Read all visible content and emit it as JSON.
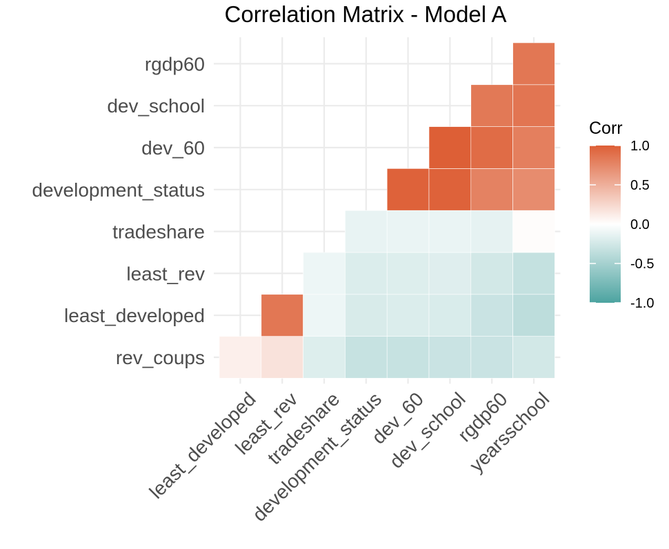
{
  "chart_data": {
    "type": "heatmap",
    "title": "Correlation Matrix - Model A",
    "x_categories": [
      "least_developed",
      "least_rev",
      "tradeshare",
      "development_status",
      "dev_60",
      "dev_school",
      "rgdp60",
      "yearsschool"
    ],
    "y_categories": [
      "rev_coups",
      "least_developed",
      "least_rev",
      "tradeshare",
      "development_status",
      "dev_60",
      "dev_school",
      "rgdp60"
    ],
    "cells": [
      {
        "x": "least_developed",
        "y": "rev_coups",
        "value": 0.1
      },
      {
        "x": "least_rev",
        "y": "rev_coups",
        "value": 0.18
      },
      {
        "x": "tradeshare",
        "y": "rev_coups",
        "value": -0.19
      },
      {
        "x": "development_status",
        "y": "rev_coups",
        "value": -0.32
      },
      {
        "x": "dev_60",
        "y": "rev_coups",
        "value": -0.32
      },
      {
        "x": "dev_school",
        "y": "rev_coups",
        "value": -0.3
      },
      {
        "x": "rgdp60",
        "y": "rev_coups",
        "value": -0.3
      },
      {
        "x": "yearsschool",
        "y": "rev_coups",
        "value": -0.25
      },
      {
        "x": "least_rev",
        "y": "least_developed",
        "value": 0.85
      },
      {
        "x": "tradeshare",
        "y": "least_developed",
        "value": -0.1
      },
      {
        "x": "development_status",
        "y": "least_developed",
        "value": -0.22
      },
      {
        "x": "dev_60",
        "y": "least_developed",
        "value": -0.2
      },
      {
        "x": "dev_school",
        "y": "least_developed",
        "value": -0.21
      },
      {
        "x": "rgdp60",
        "y": "least_developed",
        "value": -0.3
      },
      {
        "x": "yearsschool",
        "y": "least_developed",
        "value": -0.37
      },
      {
        "x": "tradeshare",
        "y": "least_rev",
        "value": -0.1
      },
      {
        "x": "development_status",
        "y": "least_rev",
        "value": -0.2
      },
      {
        "x": "dev_60",
        "y": "least_rev",
        "value": -0.19
      },
      {
        "x": "dev_school",
        "y": "least_rev",
        "value": -0.18
      },
      {
        "x": "rgdp60",
        "y": "least_rev",
        "value": -0.25
      },
      {
        "x": "yearsschool",
        "y": "least_rev",
        "value": -0.33
      },
      {
        "x": "development_status",
        "y": "tradeshare",
        "value": -0.13
      },
      {
        "x": "dev_60",
        "y": "tradeshare",
        "value": -0.12
      },
      {
        "x": "dev_school",
        "y": "tradeshare",
        "value": -0.12
      },
      {
        "x": "rgdp60",
        "y": "tradeshare",
        "value": -0.14
      },
      {
        "x": "yearsschool",
        "y": "tradeshare",
        "value": 0.02
      },
      {
        "x": "dev_60",
        "y": "development_status",
        "value": 0.98
      },
      {
        "x": "dev_school",
        "y": "development_status",
        "value": 0.98
      },
      {
        "x": "rgdp60",
        "y": "development_status",
        "value": 0.78
      },
      {
        "x": "yearsschool",
        "y": "development_status",
        "value": 0.72
      },
      {
        "x": "dev_school",
        "y": "dev_60",
        "value": 1.0
      },
      {
        "x": "rgdp60",
        "y": "dev_60",
        "value": 0.92
      },
      {
        "x": "yearsschool",
        "y": "dev_60",
        "value": 0.8
      },
      {
        "x": "rgdp60",
        "y": "dev_school",
        "value": 0.84
      },
      {
        "x": "yearsschool",
        "y": "dev_school",
        "value": 0.86
      },
      {
        "x": "yearsschool",
        "y": "rgdp60",
        "value": 0.85
      }
    ],
    "legend": {
      "title": "Corr",
      "min": -1,
      "max": 1,
      "ticks": [
        "1.0",
        "0.5",
        "0.0",
        "-0.5",
        "-1.0"
      ],
      "tick_values": [
        1.0,
        0.5,
        0.0,
        -0.5,
        -1.0
      ],
      "placement": "right"
    },
    "colors": {
      "low": "#4ca3a0",
      "mid": "#ffffff",
      "high": "#dd5f36"
    },
    "grid": true
  }
}
